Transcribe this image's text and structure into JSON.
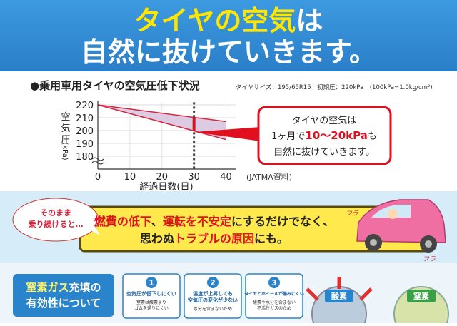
{
  "header": {
    "title_line1": [
      "タイヤの空気",
      "は"
    ],
    "title_line2": "自然に抜けていきます。"
  },
  "chart_data": {
    "type": "line",
    "title": "●乗用車用タイヤの空気圧低下状況",
    "subtitle": "タイヤサイズ：195/65R15　初期圧：220kPa　(100kPa=1.0kg/cm²)",
    "x_label": "経過日数(日)",
    "y_label": [
      "空",
      "気",
      "圧",
      "(kPa)"
    ],
    "source": "(JATMA資料)",
    "x": [
      0,
      40
    ],
    "series": [
      {
        "color": "#d7263d",
        "values": [
          220,
          207
        ]
      },
      {
        "color": "#d7263d",
        "values": [
          220,
          193
        ]
      }
    ],
    "fill_color": "#dccbe3",
    "marker": {
      "x": 30,
      "values": [
        210,
        200
      ],
      "color": "#e0101f"
    },
    "xlim": [
      0,
      43
    ],
    "ylim": [
      170,
      222
    ],
    "xticks": [
      0,
      10,
      20,
      30,
      40
    ],
    "yticks": [
      180,
      190,
      200,
      210,
      220
    ],
    "grid": true
  },
  "callout": {
    "line1": "タイヤの空気は",
    "line2": [
      "1ヶ月で",
      "10〜20kPa",
      "も"
    ],
    "line3": "自然に抜けていきます。"
  },
  "banner": {
    "bubble": [
      "そのまま",
      "乗り続けると…"
    ],
    "line1": [
      "燃費の低下",
      "、",
      "運転を不安定",
      "にするだけでなく、"
    ],
    "line2": [
      "思わぬ",
      "トラブルの原因",
      "にも。"
    ],
    "sounds": [
      "フラ",
      "フラ"
    ]
  },
  "bottom": {
    "heading": [
      [
        "窒素ガス",
        "充填の"
      ],
      "有効性について"
    ],
    "cards": [
      {
        "number": 1,
        "title": [
          "空気圧が低下しにくい"
        ],
        "lines": [
          "窒素は酸素より",
          "ゴムを通りにくい"
        ]
      },
      {
        "number": 2,
        "title": [
          "温度が上昇しても",
          "空気圧の変化が少ない"
        ],
        "lines": [
          "水分を含まないため"
        ]
      },
      {
        "number": 3,
        "title": [
          "タイヤとホイールが傷みにくい"
        ],
        "lines": [
          "酸素や水分を含まない",
          "不活性ガスのため"
        ]
      }
    ],
    "gases": [
      "酸素",
      "窒素"
    ]
  }
}
